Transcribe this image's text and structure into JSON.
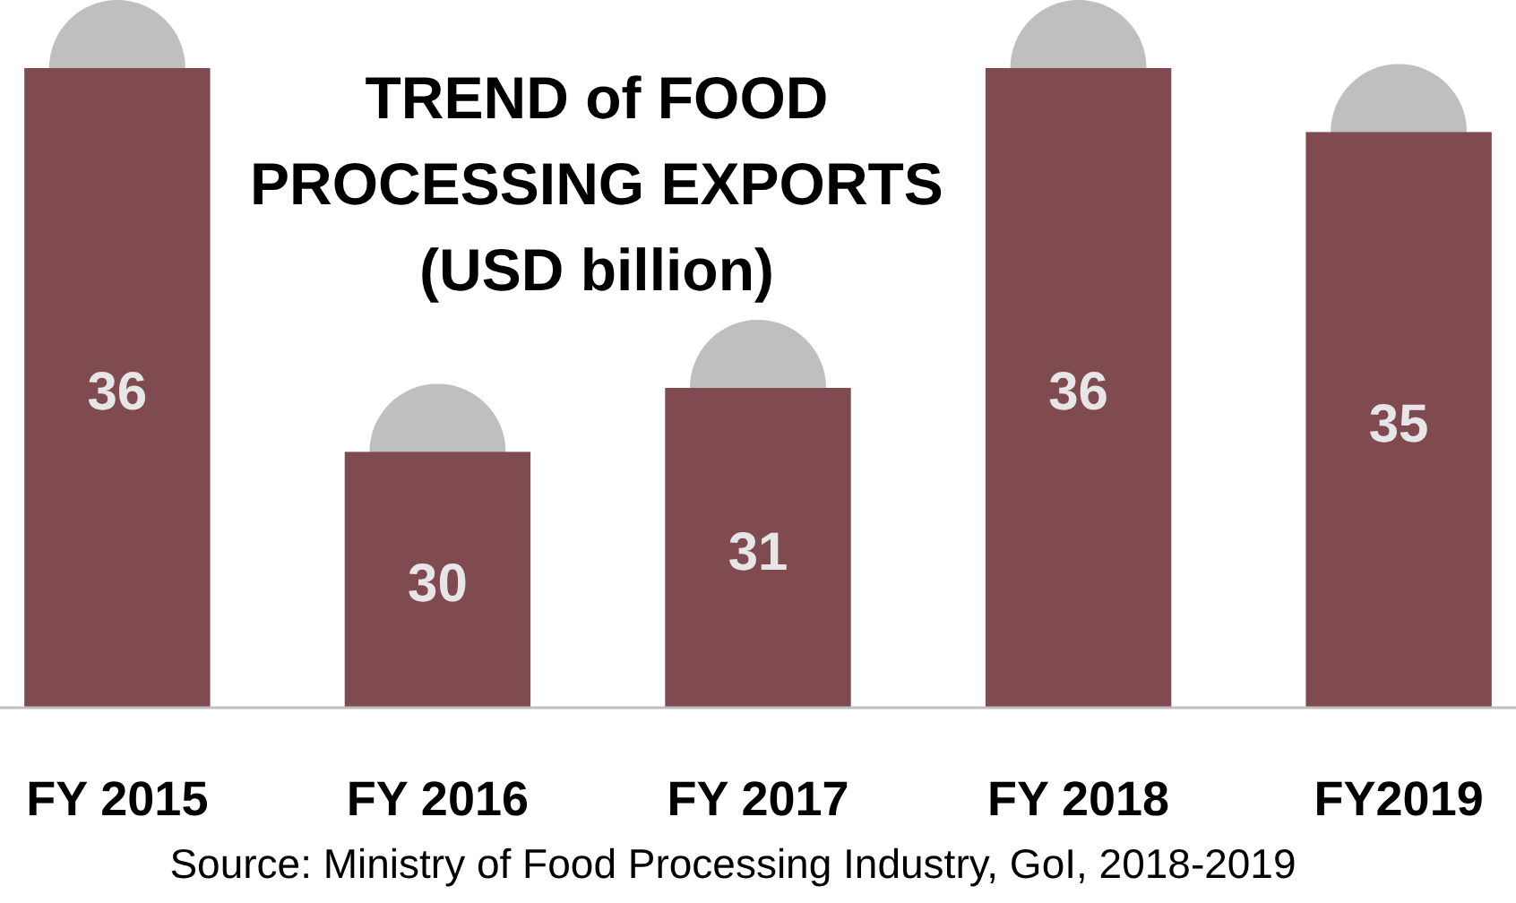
{
  "chart_data": {
    "type": "bar",
    "title": "TREND of FOOD PROCESSING EXPORTS",
    "subtitle": "(USD billion)",
    "categories": [
      "FY 2015",
      "FY 2016",
      "FY 2017",
      "FY 2018",
      "FY2019"
    ],
    "values": [
      36,
      30,
      31,
      36,
      35
    ],
    "color": "#7f4b50",
    "ylim": [
      26,
      36
    ],
    "data_labels": true,
    "annotations": [
      "Source: Ministry of Food Processing Industry, GoI, 2018-2019"
    ]
  }
}
